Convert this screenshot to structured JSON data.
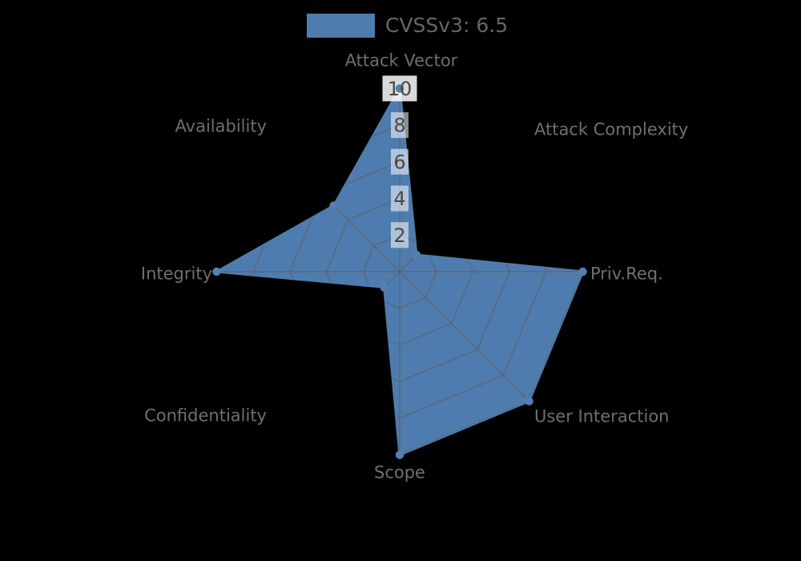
{
  "chart_data": {
    "type": "radar",
    "legend_label": "CVSSv3: 6.5",
    "legend_position": "top-center",
    "background_color": "#000000",
    "series_color": "#4f7cae",
    "marker_color": "#557fb0",
    "marker": "circle",
    "grid_color": "#5f5f5f",
    "grid_style": "octagonal web with 8 spokes, visible only inside the filled polygon",
    "label_color": "#6f6f6f",
    "tick_text_color": "#484848",
    "tick_bg_color": "#ffffff",
    "rlim": [
      0,
      10
    ],
    "radial_ticks": [
      "2",
      "4",
      "6",
      "8",
      "10"
    ],
    "categories": [
      "Attack Vector",
      "Attack Complexity",
      "Priv.Req.",
      "User Interaction",
      "Scope",
      "Confidentiality",
      "Integrity",
      "Availability"
    ],
    "series": [
      {
        "name": "CVSSv3: 6.5",
        "values": [
          10,
          1.3,
          10,
          10,
          10,
          1.2,
          10,
          5.1
        ]
      }
    ]
  }
}
